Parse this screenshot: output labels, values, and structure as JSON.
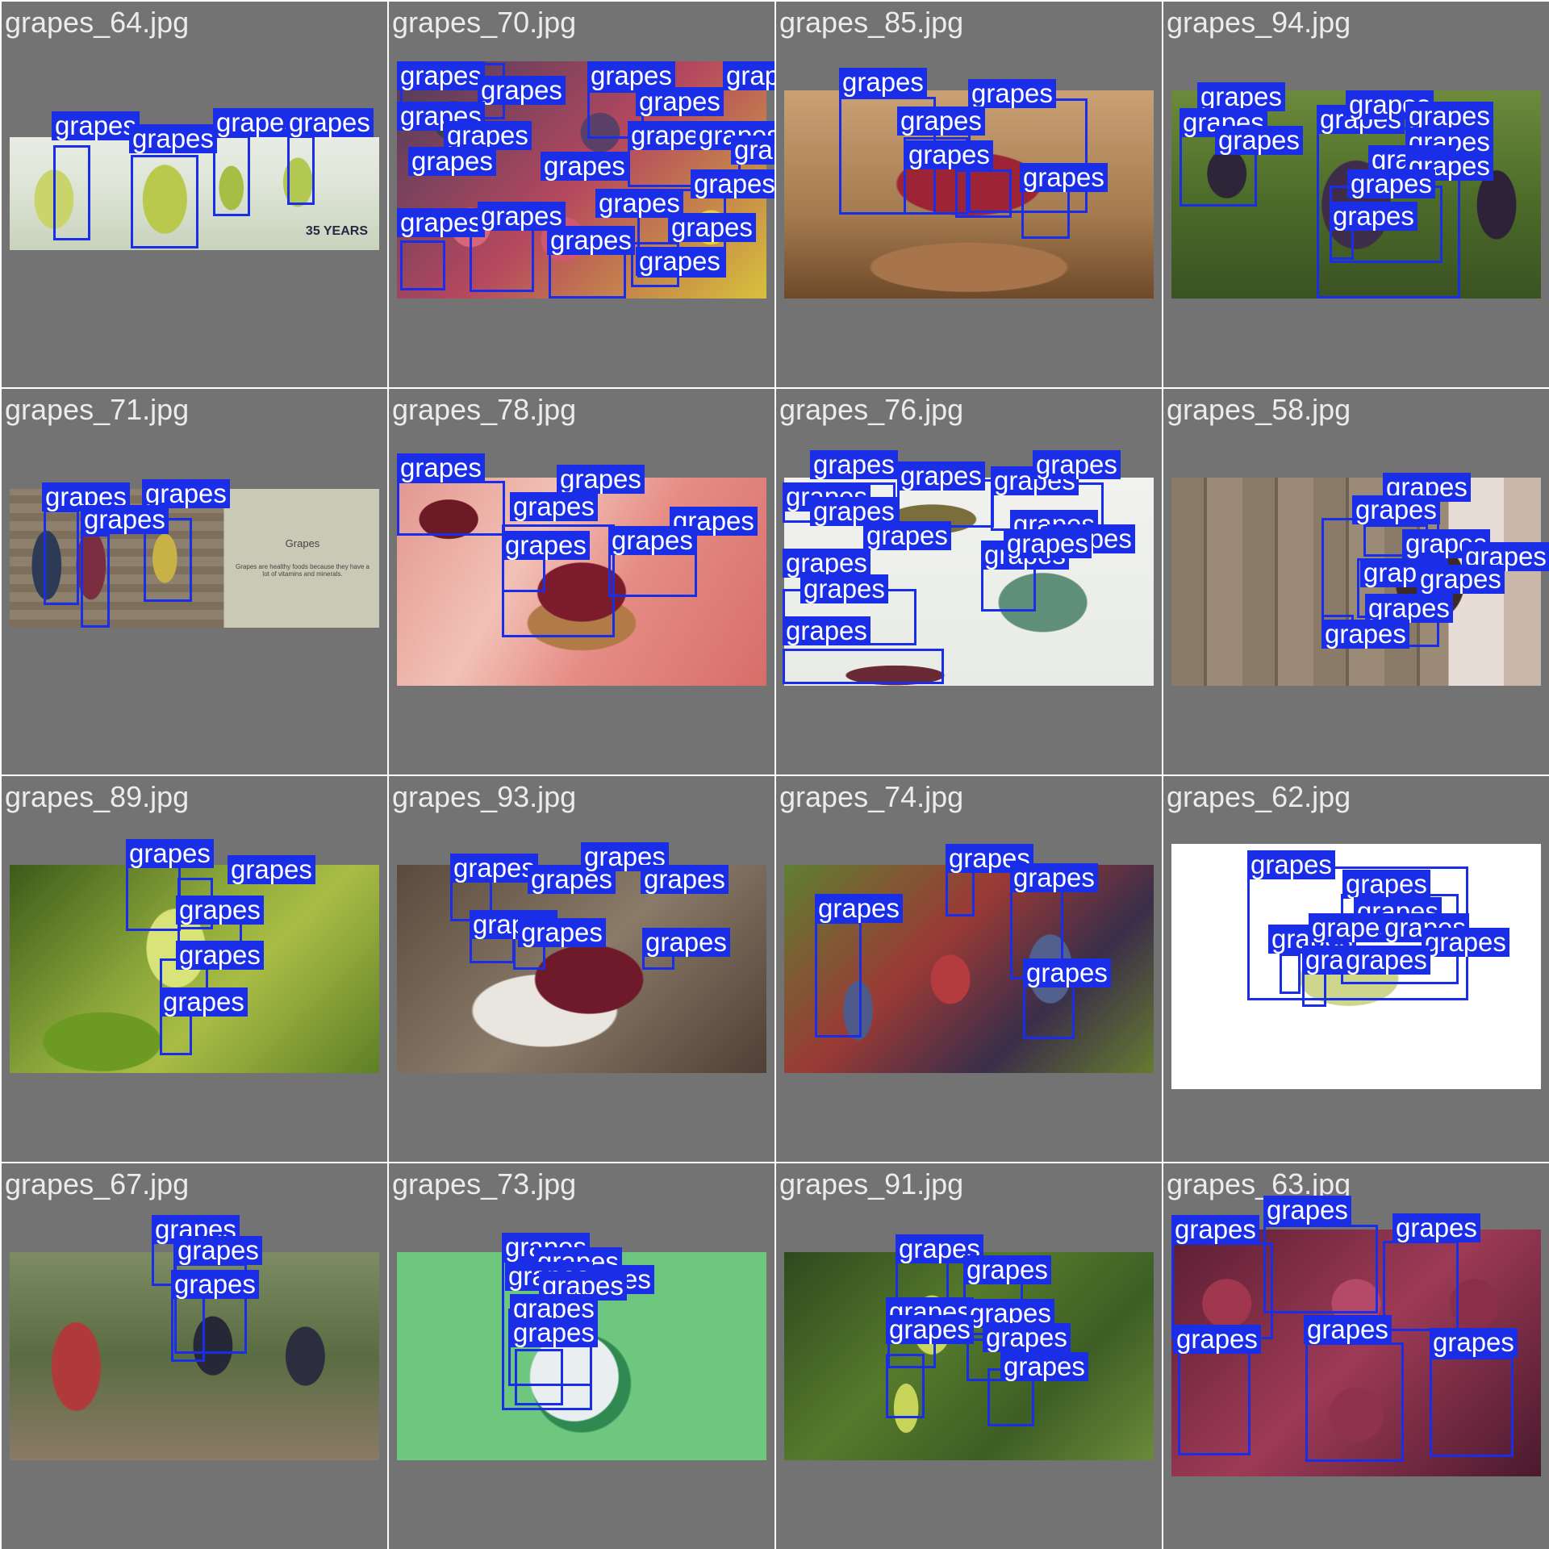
{
  "label_text": "grapes",
  "box_color": "#1a2ee8",
  "tiles": [
    {
      "filename": "grapes_64.jpg",
      "photo_text": {
        "logo": "35 YEARS"
      }
    },
    {
      "filename": "grapes_70.jpg"
    },
    {
      "filename": "grapes_85.jpg"
    },
    {
      "filename": "grapes_94.jpg"
    },
    {
      "filename": "grapes_71.jpg",
      "photo_text": {
        "heading": "Grapes",
        "body": "Grapes are healthy foods because they have a lot of vitamins and minerals."
      }
    },
    {
      "filename": "grapes_78.jpg"
    },
    {
      "filename": "grapes_76.jpg"
    },
    {
      "filename": "grapes_58.jpg"
    },
    {
      "filename": "grapes_89.jpg"
    },
    {
      "filename": "grapes_93.jpg"
    },
    {
      "filename": "grapes_74.jpg"
    },
    {
      "filename": "grapes_62.jpg"
    },
    {
      "filename": "grapes_67.jpg"
    },
    {
      "filename": "grapes_73.jpg"
    },
    {
      "filename": "grapes_91.jpg"
    },
    {
      "filename": "grapes_63.jpg"
    }
  ]
}
